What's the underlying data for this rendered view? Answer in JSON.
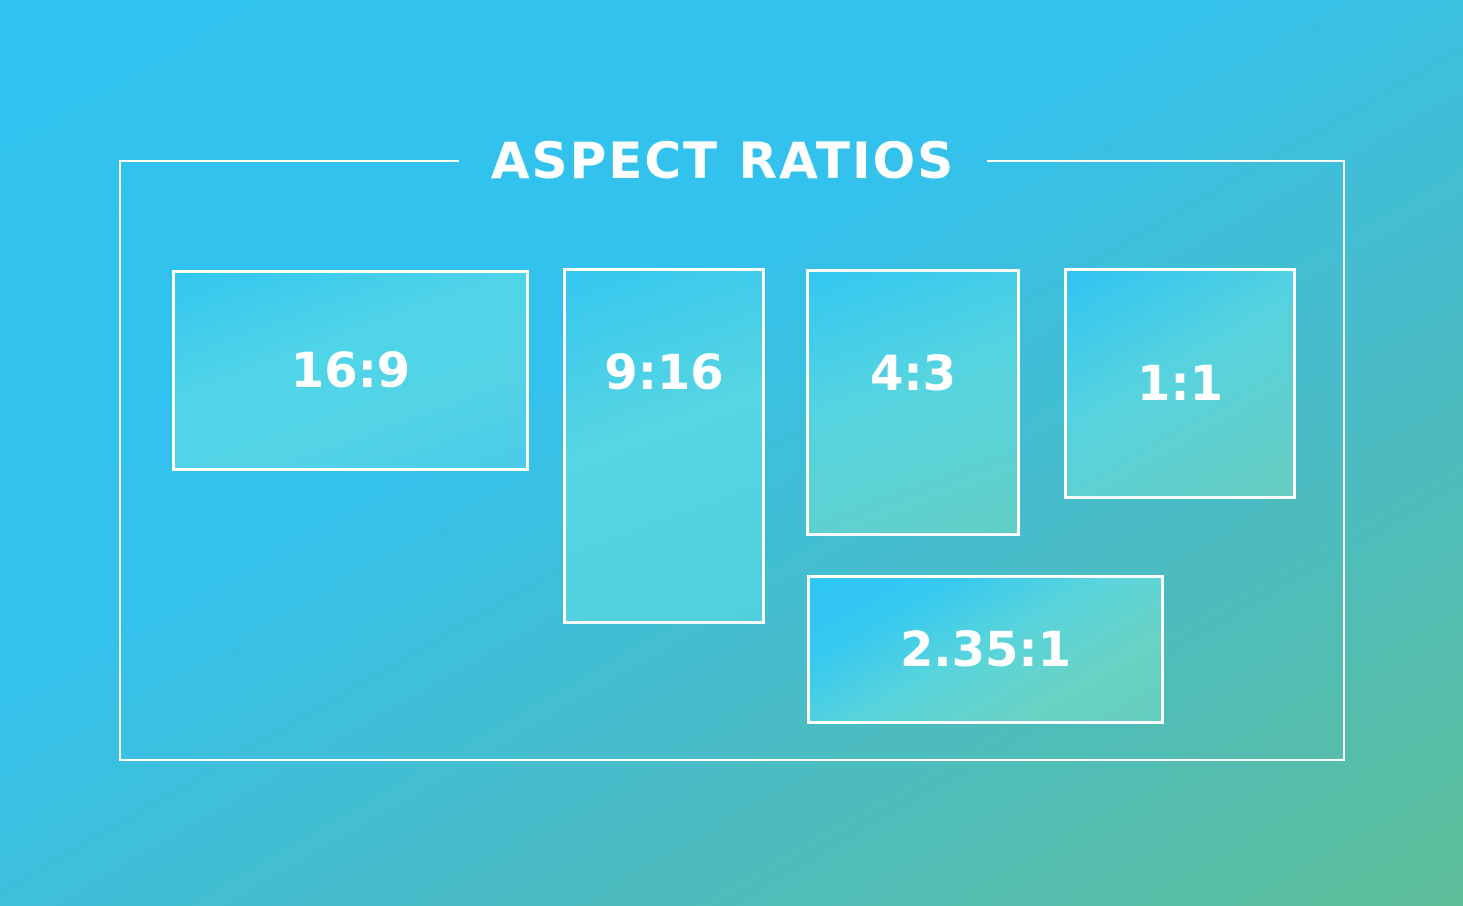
{
  "title": "ASPECT RATIOS",
  "ratios": [
    {
      "label": "16:9"
    },
    {
      "label": "9:16"
    },
    {
      "label": "4:3"
    },
    {
      "label": "1:1"
    },
    {
      "label": "2.35:1"
    }
  ],
  "colors": {
    "background_start": "#31c3ef",
    "background_end": "#5dbe98",
    "line": "#ffffff",
    "text": "#ffffff"
  }
}
